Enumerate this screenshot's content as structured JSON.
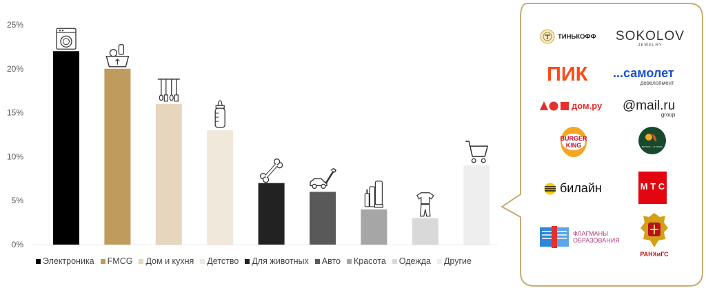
{
  "chart_data": {
    "type": "bar",
    "categories": [
      "Электроника",
      "FMCG",
      "Дом и кухня",
      "Детство",
      "Для животных",
      "Авто",
      "Красота",
      "Одежда",
      "Другие"
    ],
    "values": [
      22,
      20,
      16,
      13,
      7,
      6,
      4,
      3,
      9
    ],
    "colors": [
      "#000000",
      "#bf9b5e",
      "#e6d6bd",
      "#f1e8dc",
      "#222222",
      "#595959",
      "#a6a6a6",
      "#d9d9d9",
      "#eeeeee"
    ],
    "icons": [
      "washing-machine-icon",
      "grocery-basket-icon",
      "kitchen-utensils-icon",
      "baby-bottle-icon",
      "bone-icon",
      "car-wrench-icon",
      "cosmetics-icon",
      "clothes-icon",
      "shopping-cart-icon"
    ],
    "yticks": [
      "0%",
      "5%",
      "10%",
      "15%",
      "20%",
      "25%"
    ],
    "ylim": [
      0,
      25
    ],
    "legend_position": "bottom"
  },
  "brands": {
    "tinkoff": "ТИНЬКОФФ",
    "sokolov": "SOKOLOV",
    "sokolov_sub": "JEWELRY",
    "pik": "ПИК",
    "samolet": "...самолет",
    "samolet_sub": "девелопмент",
    "domru": "дом.ру",
    "mailru": "@mail.ru",
    "mailru_sub": "group",
    "burgerking_1": "BURGER",
    "burgerking_2": "KING",
    "vkusno_text": "ВКУСНО — И ТОЧКА",
    "beeline": "билайн",
    "mts": "М Т С",
    "flagmany_1": "ФЛАГМАНЫ",
    "flagmany_2": "ОБРАЗОВАНИЯ",
    "ranepa": "РАНХиГС"
  }
}
